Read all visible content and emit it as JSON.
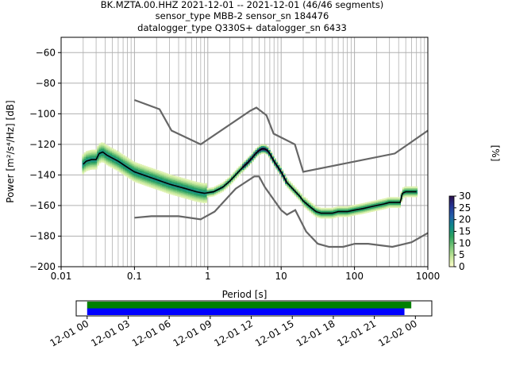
{
  "title": {
    "line1": "BK.MZTA.00.HHZ   2021-12-01 -- 2021-12-01  (46/46 segments)",
    "line2": "sensor_type MBB-2 sensor_sn 184476",
    "line3": "datalogger_type Q330S+ datalogger_sn 6433"
  },
  "colorbar": {
    "label": "[%]",
    "min": 0,
    "max": 30,
    "ticks": [
      0,
      5,
      10,
      15,
      20,
      25,
      30
    ],
    "tick_labels": [
      "0",
      "5",
      "10",
      "15",
      "20",
      "25",
      "30"
    ],
    "stops": [
      "#ffffcc",
      "#c2e699",
      "#78c679",
      "#2ca25f",
      "#0e8a8a",
      "#225ea8",
      "#253494",
      "#2c0f4a"
    ]
  },
  "timeline": {
    "tick_labels": [
      "12-01 00",
      "12-01 03",
      "12-01 06",
      "12-01 09",
      "12-01 12",
      "12-01 15",
      "12-01 18",
      "12-01 21",
      "12-02 00"
    ],
    "range_hours": [
      -0.8,
      25.2
    ],
    "bars": [
      {
        "start_hours": 0,
        "end_hours": 23.7,
        "color": "#008000"
      },
      {
        "start_hours": 0,
        "end_hours": 23.2,
        "color": "#0000ff"
      }
    ]
  },
  "chart_data": {
    "type": "line",
    "xlabel": "Period [s]",
    "ylabel": "Power [m²/s⁴/Hz] [dB]",
    "xscale": "log",
    "xlim": [
      0.01,
      1000
    ],
    "ylim": [
      -200,
      -50
    ],
    "x_ticks": [
      0.01,
      0.1,
      1,
      10,
      100,
      1000
    ],
    "x_tick_labels": [
      "0.01",
      "0.1",
      "1",
      "10",
      "100",
      "1000"
    ],
    "y_ticks": [
      -200,
      -180,
      -160,
      -140,
      -120,
      -100,
      -80,
      -60
    ],
    "y_tick_labels": [
      "−200",
      "−180",
      "−160",
      "−140",
      "−120",
      "−100",
      "−80",
      "−60"
    ],
    "grid": true,
    "series": [
      {
        "role": "median",
        "color": "#000000",
        "x": [
          0.02,
          0.022,
          0.026,
          0.03,
          0.033,
          0.037,
          0.042,
          0.05,
          0.06,
          0.08,
          0.1,
          0.15,
          0.2,
          0.3,
          0.5,
          0.7,
          0.9,
          1.2,
          1.6,
          2.0,
          2.5,
          3.0,
          3.5,
          4.0,
          4.5,
          5.0,
          5.5,
          6.0,
          6.5,
          7.0,
          8.0,
          10,
          12,
          15,
          18,
          20,
          25,
          30,
          35,
          40,
          50,
          60,
          80,
          100,
          130,
          160,
          200,
          250,
          300,
          350,
          400,
          420,
          450,
          500,
          600,
          700
        ],
        "y": [
          -133,
          -131,
          -130,
          -130,
          -126,
          -125,
          -127,
          -129,
          -131,
          -135,
          -138,
          -141,
          -143,
          -146,
          -149,
          -151,
          -152,
          -151,
          -148,
          -144,
          -139,
          -135,
          -132,
          -129,
          -126,
          -124,
          -123,
          -123,
          -124,
          -126,
          -131,
          -138,
          -145,
          -150,
          -154,
          -157,
          -161,
          -164,
          -165,
          -165,
          -165,
          -164,
          -164,
          -163,
          -162,
          -161,
          -160,
          -159,
          -158,
          -158,
          -158,
          -158,
          -152,
          -151,
          -151,
          -151
        ]
      },
      {
        "role": "NHNM",
        "color": "#666666",
        "x": [
          0.1,
          0.22,
          0.32,
          0.8,
          3.8,
          4.6,
          6.3,
          7.9,
          15.4,
          20,
          354.8,
          1000
        ],
        "y": [
          -91,
          -97,
          -111,
          -120,
          -98,
          -96,
          -101,
          -113,
          -120,
          -138,
          -126,
          -111
        ]
      },
      {
        "role": "NLNM",
        "color": "#666666",
        "x": [
          0.1,
          0.17,
          0.4,
          0.8,
          1.24,
          2.4,
          4.3,
          5.0,
          6.0,
          10.0,
          12.0,
          15.6,
          21.9,
          31.6,
          45,
          70,
          101,
          154,
          328,
          600,
          1000
        ],
        "y": [
          -168,
          -167,
          -167,
          -169,
          -164,
          -149,
          -141,
          -141,
          -148,
          -163,
          -166,
          -163,
          -177,
          -185,
          -187,
          -187,
          -185,
          -185,
          -187,
          -184,
          -178
        ]
      }
    ]
  }
}
